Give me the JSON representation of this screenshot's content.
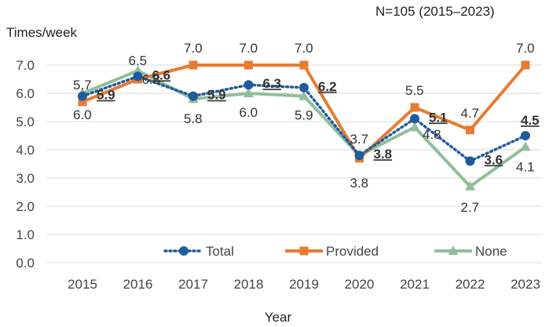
{
  "chart_data": {
    "type": "line",
    "title": "N=105 (2015–2023)",
    "ylabel": "Times/week",
    "xlabel": "Year",
    "ylim": [
      0,
      7
    ],
    "yticks": [
      "0.0",
      "1.0",
      "2.0",
      "3.0",
      "4.0",
      "5.0",
      "6.0",
      "7.0"
    ],
    "categories": [
      "2015",
      "2016",
      "2017",
      "2018",
      "2019",
      "2020",
      "2021",
      "2022",
      "2023"
    ],
    "series": [
      {
        "name": "Total",
        "color": "#1f5c9e",
        "marker": "circle",
        "style": "dotted",
        "values": [
          5.9,
          6.6,
          5.9,
          6.3,
          6.2,
          3.8,
          5.1,
          3.6,
          4.5
        ],
        "labels": [
          "5.9",
          "6.6",
          "5.9",
          "6.3",
          "6.2",
          "3.8",
          "5.1",
          "3.6",
          "4.5"
        ]
      },
      {
        "name": "Provided",
        "color": "#e87b32",
        "marker": "square",
        "style": "solid",
        "values": [
          5.7,
          6.5,
          7.0,
          7.0,
          7.0,
          3.7,
          5.5,
          4.7,
          7.0
        ],
        "labels": [
          "5.7",
          "6.5",
          "7.0",
          "7.0",
          "7.0",
          "3.7",
          "5.5",
          "4.7",
          "7.0"
        ]
      },
      {
        "name": "None",
        "color": "#8fbf9a",
        "marker": "triangle",
        "style": "solid",
        "values": [
          6.0,
          6.8,
          5.8,
          6.0,
          5.9,
          3.8,
          4.8,
          2.7,
          4.1
        ],
        "labels": [
          "6.0",
          "6.8",
          "5.8",
          "6.0",
          "5.9",
          "3.8",
          "4.8",
          "2.7",
          "4.1"
        ]
      }
    ],
    "legend": [
      "Total",
      "Provided",
      "None"
    ],
    "legend_position": "bottom-right",
    "grid": true
  }
}
